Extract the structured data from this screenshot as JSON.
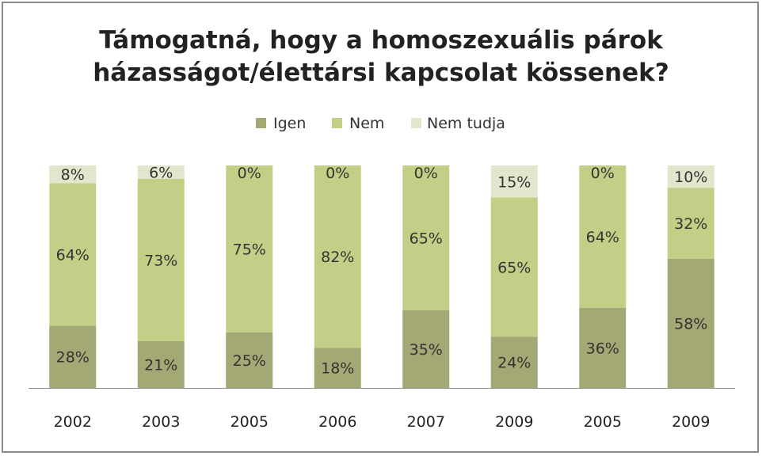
{
  "chart_data": {
    "type": "bar",
    "stacked": true,
    "normalized": true,
    "title": "Támogatná, hogy a homoszexuális párok házasságot/élettársi kapcsolat kössenek?",
    "title_lines": [
      "Támogatná, hogy a homoszexuális párok",
      "házasságot/élettársi kapcsolat kössenek?"
    ],
    "xlabel": "",
    "ylabel": "",
    "legend_position": "top",
    "grid": false,
    "categories": [
      "2002",
      "2003",
      "2005",
      "2006",
      "2007",
      "2009",
      "2005",
      "2009"
    ],
    "series": [
      {
        "name": "Igen",
        "color": "#a3a874",
        "values": [
          28,
          21,
          25,
          18,
          35,
          24,
          36,
          58
        ],
        "labels": [
          "28%",
          "21%",
          "25%",
          "18%",
          "35%",
          "24%",
          "36%",
          "58%"
        ]
      },
      {
        "name": "Nem",
        "color": "#c3cf86",
        "values": [
          64,
          73,
          75,
          82,
          65,
          65,
          64,
          32
        ],
        "labels": [
          "64%",
          "73%",
          "75%",
          "82%",
          "65%",
          "65%",
          "64%",
          "32%"
        ]
      },
      {
        "name": "Nem tudja",
        "color": "#e1e6cc",
        "values": [
          8,
          6,
          0,
          0,
          0,
          15,
          0,
          10
        ],
        "labels": [
          "8%",
          "6%",
          "0%",
          "0%",
          "0%",
          "15%",
          "0%",
          "10%"
        ]
      }
    ]
  }
}
